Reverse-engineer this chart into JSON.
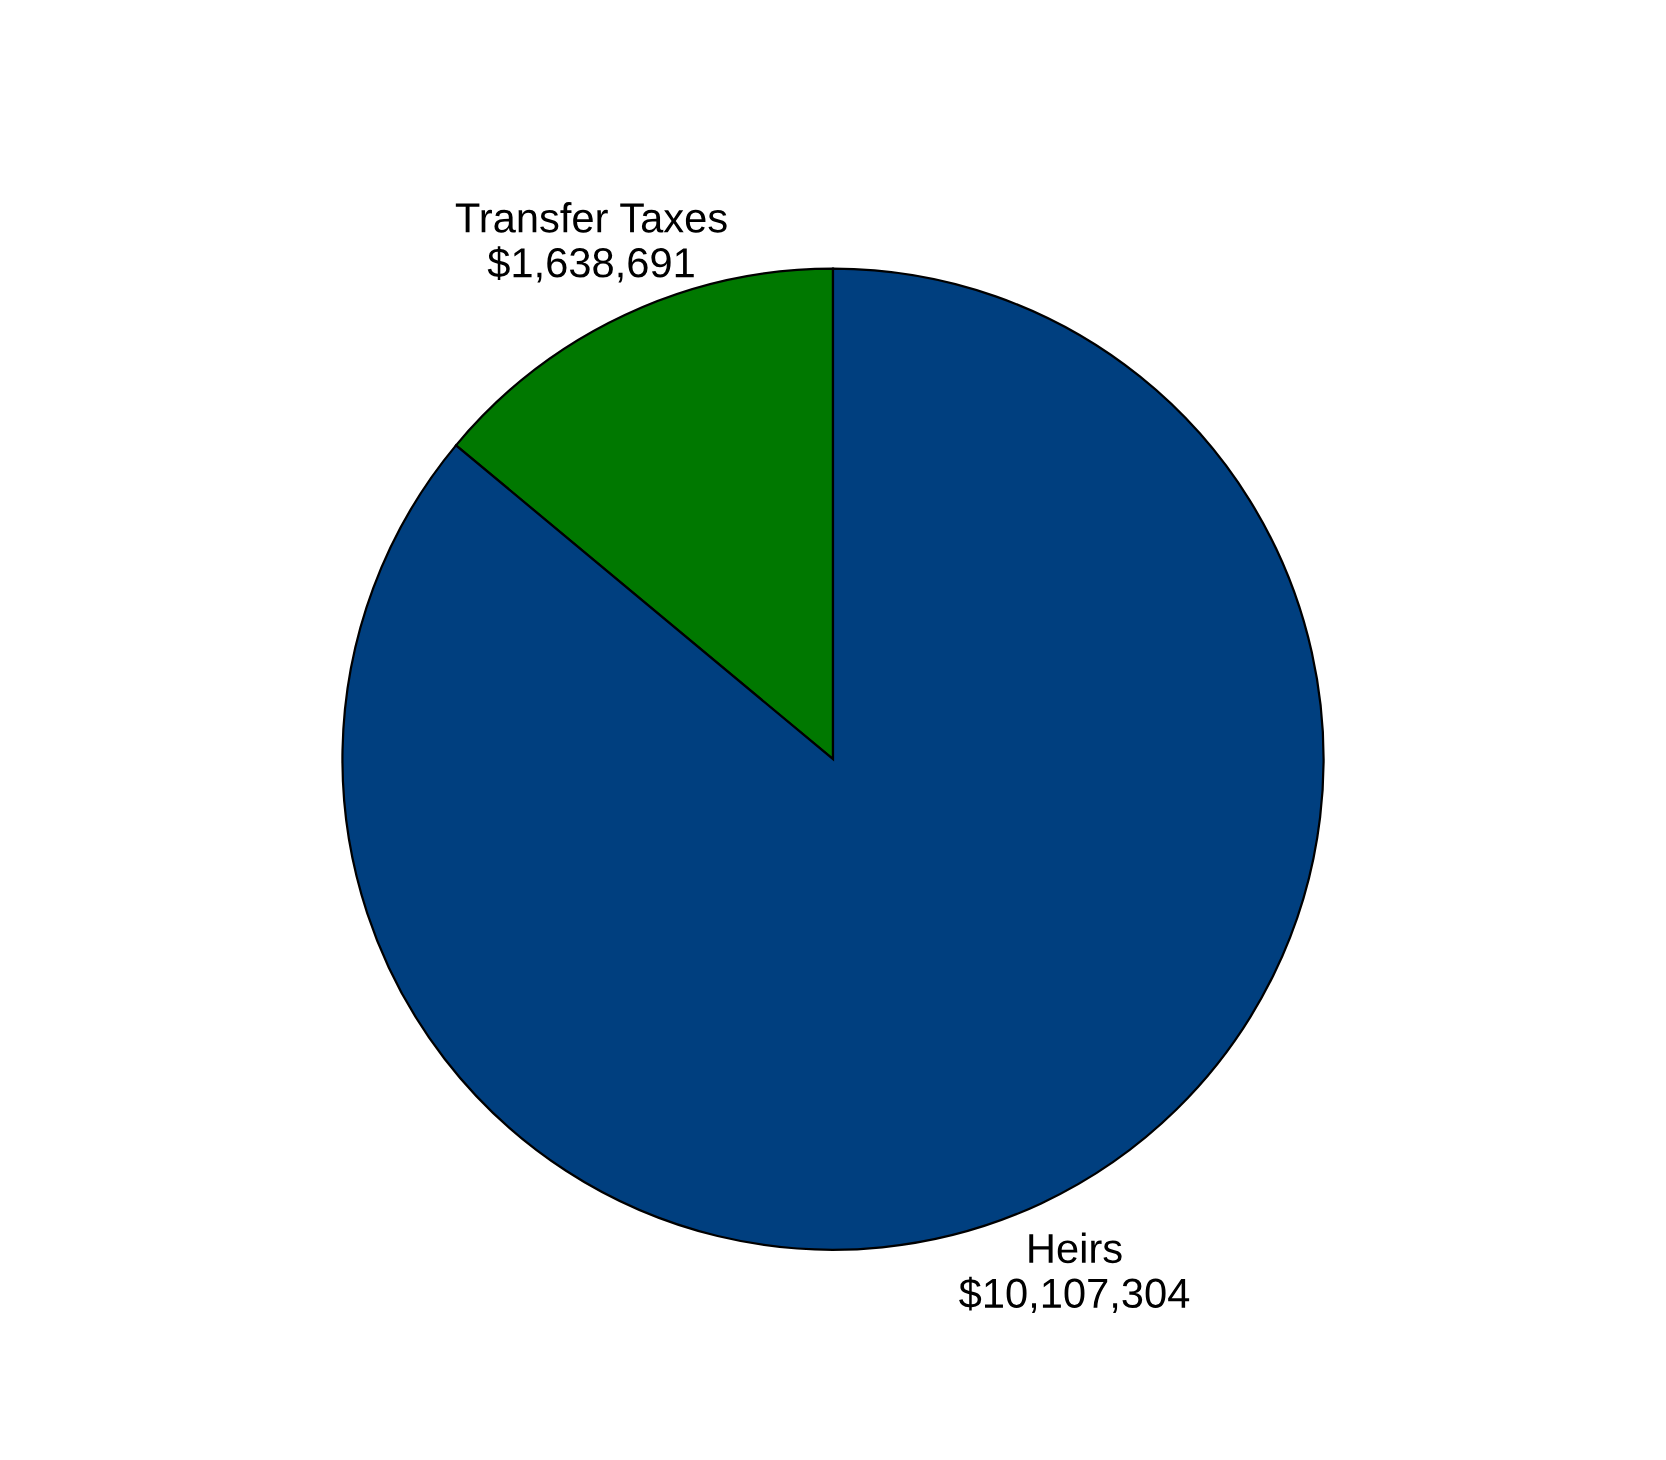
{
  "chart_data": {
    "type": "pie",
    "categories": [
      "Transfer Taxes",
      "Heirs"
    ],
    "values": [
      1638691,
      10107304
    ],
    "value_labels": [
      "$1,638,691",
      "$10,107,304"
    ],
    "colors": [
      "#007800",
      "#003f7f"
    ],
    "legend": false
  }
}
